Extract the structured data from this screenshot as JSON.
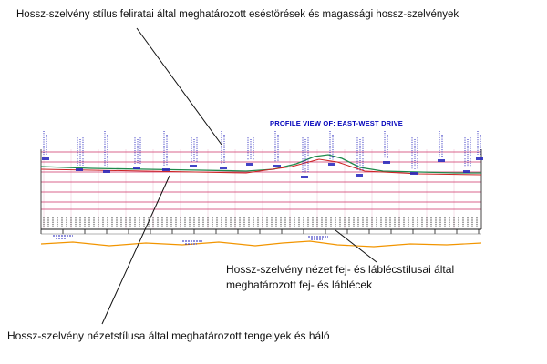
{
  "annotations": {
    "top": "Hossz-szelvény stílus feliratai által meghatározott eséstörések és magassági hossz-szelvények",
    "bottom_right_line1": "Hossz-szelvény nézet fej- és láblécstílusai által",
    "bottom_right_line2": "meghatározott fej- és láblécek",
    "bottom_left": "Hossz-szelvény nézetstílusa által meghatározott tengelyek és háló"
  },
  "profile_view": {
    "title": "PROFILE VIEW OF: EAST-WEST DRIVE"
  },
  "colors": {
    "grid_line": "#cc3366",
    "profile_green": "#1f8a4c",
    "profile_red": "#cc2222",
    "label_blue": "#2222bb",
    "band_black": "#151515",
    "surface_orange": "#f29500",
    "title_blue": "#0000bb"
  }
}
